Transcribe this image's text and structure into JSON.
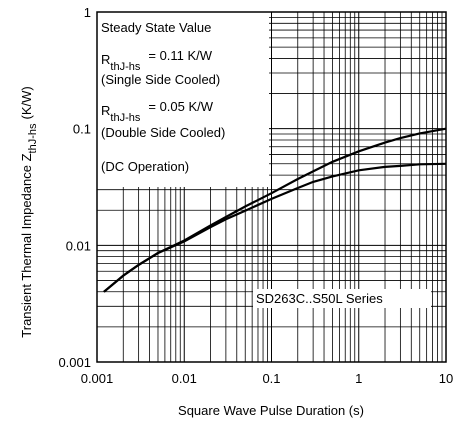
{
  "chart_data": {
    "type": "line",
    "xlabel": "Square Wave Pulse Duration (s)",
    "ylabel": "Transient Thermal Impedance Z",
    "ylabel_sub": "thJ-hs",
    "ylabel_unit": "(K/W)",
    "x_scale": "log",
    "y_scale": "log",
    "xlim": [
      0.001,
      10
    ],
    "ylim": [
      0.001,
      1
    ],
    "grid": true,
    "x_ticks": [
      "0.001",
      "0.01",
      "0.1",
      "1",
      "10"
    ],
    "y_ticks": [
      "0.001",
      "0.01",
      "0.1",
      "1"
    ],
    "series": [
      {
        "x": [
          0.0012,
          0.002,
          0.003,
          0.005,
          0.01,
          0.02,
          0.03,
          0.05,
          0.1,
          0.2,
          0.3,
          0.5,
          1,
          2,
          3,
          5,
          10
        ],
        "y": [
          0.004,
          0.0055,
          0.0068,
          0.0086,
          0.011,
          0.0148,
          0.0175,
          0.0215,
          0.028,
          0.037,
          0.043,
          0.052,
          0.064,
          0.076,
          0.083,
          0.091,
          0.1
        ]
      },
      {
        "x": [
          0.0012,
          0.002,
          0.003,
          0.005,
          0.01,
          0.02,
          0.03,
          0.05,
          0.1,
          0.2,
          0.3,
          0.5,
          1,
          2,
          3,
          5,
          10
        ],
        "y": [
          0.004,
          0.0055,
          0.0068,
          0.0086,
          0.0108,
          0.0143,
          0.0167,
          0.0198,
          0.025,
          0.031,
          0.035,
          0.039,
          0.044,
          0.047,
          0.048,
          0.0495,
          0.05
        ]
      }
    ],
    "annotations": {
      "steady_state": "Steady State Value",
      "r_label_1": "R",
      "r_sub_1": "thJ-hs",
      "r_value_1": "= 0.11 K/W",
      "single_side": "(Single Side Cooled)",
      "r_label_2": "R",
      "r_sub_2": "thJ-hs",
      "r_value_2": "= 0.05 K/W",
      "double_side": "(Double Side Cooled)",
      "dc_operation": "(DC Operation)",
      "series_label": "SD263C..S50L Series"
    }
  }
}
